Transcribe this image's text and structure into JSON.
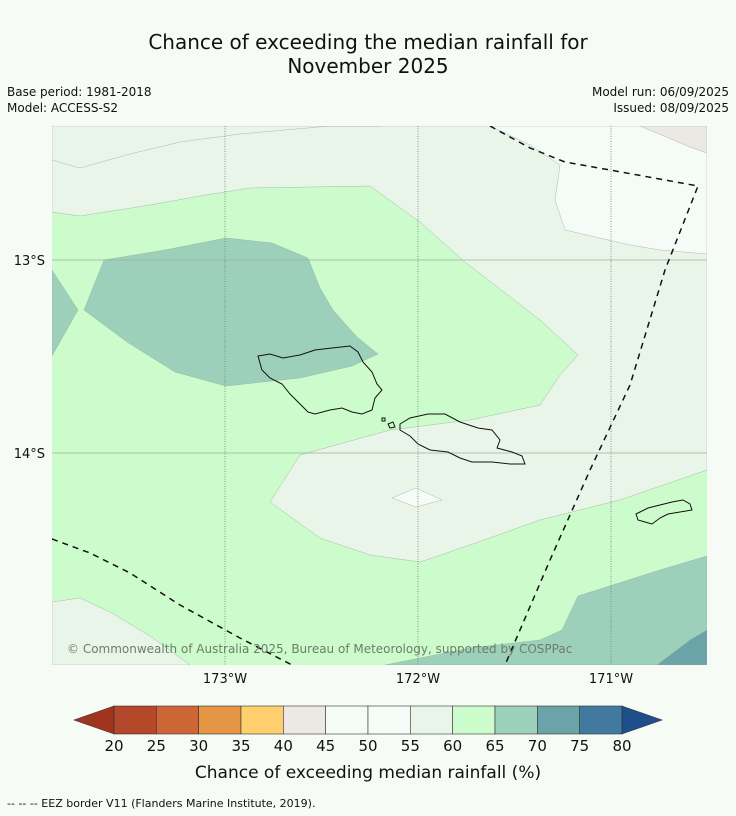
{
  "title": {
    "line1": "Chance of exceeding the median rainfall for",
    "line2": "November 2025"
  },
  "meta": {
    "base_period": "Base period: 1981-2018",
    "model": "Model: ACCESS-S2",
    "model_run": "Model run: 06/09/2025",
    "issued": "Issued: 08/09/2025"
  },
  "map": {
    "lat_labels": [
      "13°S",
      "14°S"
    ],
    "lon_labels": [
      "173°W",
      "172°W",
      "171°W"
    ],
    "copyright": "© Commonwealth of Australia 2025, Bureau of Meteorology, supported by COSPPac",
    "colors": {
      "c40_45": "#ece9e4",
      "c45_55": "#f5fbf6",
      "c55_60": "#eaf5e9",
      "c60_65": "#ccfccc",
      "c65_70": "#9dd0bb",
      "c70_75": "#6aa4a8"
    }
  },
  "colorbar": {
    "ticks": [
      "20",
      "25",
      "30",
      "35",
      "40",
      "45",
      "50",
      "55",
      "60",
      "65",
      "70",
      "75",
      "80"
    ],
    "colors": [
      "#a1341f",
      "#b5472a",
      "#cd6535",
      "#e49546",
      "#fecf6c",
      "#ece9e4",
      "#f5fbf6",
      "#f5fbf6",
      "#eaf5e9",
      "#ccfccc",
      "#9dd0bb",
      "#6aa4a8",
      "#42799e",
      "#1d4f8a"
    ],
    "label": "Chance of exceeding median rainfall (%)"
  },
  "footer": "--  --  -- EEZ border V11 (Flanders Marine Institute, 2019)."
}
